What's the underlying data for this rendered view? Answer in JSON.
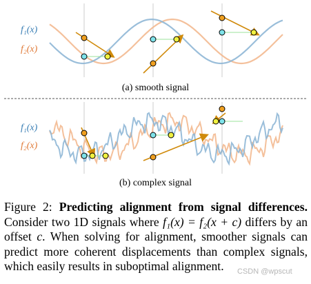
{
  "panels": [
    {
      "id": "a",
      "caption": "(a) smooth signal",
      "legend": {
        "f1": "f₁(x)",
        "f2": "f₂(x)"
      }
    },
    {
      "id": "b",
      "caption": "(b) complex signal",
      "legend": {
        "f1": "f₁(x)",
        "f2": "f₂(x)"
      }
    }
  ],
  "colors": {
    "f1": "#8fb7d6",
    "f2": "#f2b58a",
    "f1_label": "#3a7fb5",
    "f2_label": "#e07b39",
    "cyan_point": "#7fe3ea",
    "orange_point": "#f0a020",
    "yellow_point": "#f0f040",
    "arrow": "#d08a0a",
    "link_line": "#9be39b",
    "vline": "#cccccc",
    "separator": "#555555"
  },
  "caption": {
    "label": "Figure 2:",
    "title": "Predicting alignment from signal differences.",
    "body_1": "Consider two 1D signals where ",
    "eq": "f₁(x) = f₂(x + c)",
    "body_2": " differs by an offset ",
    "c": "c",
    "body_3": ". When solving for alignment, smoother signals can predict more coherent displacements than complex signals, which easily results in suboptimal alignment."
  },
  "watermark": "CSDN @wpscut"
}
